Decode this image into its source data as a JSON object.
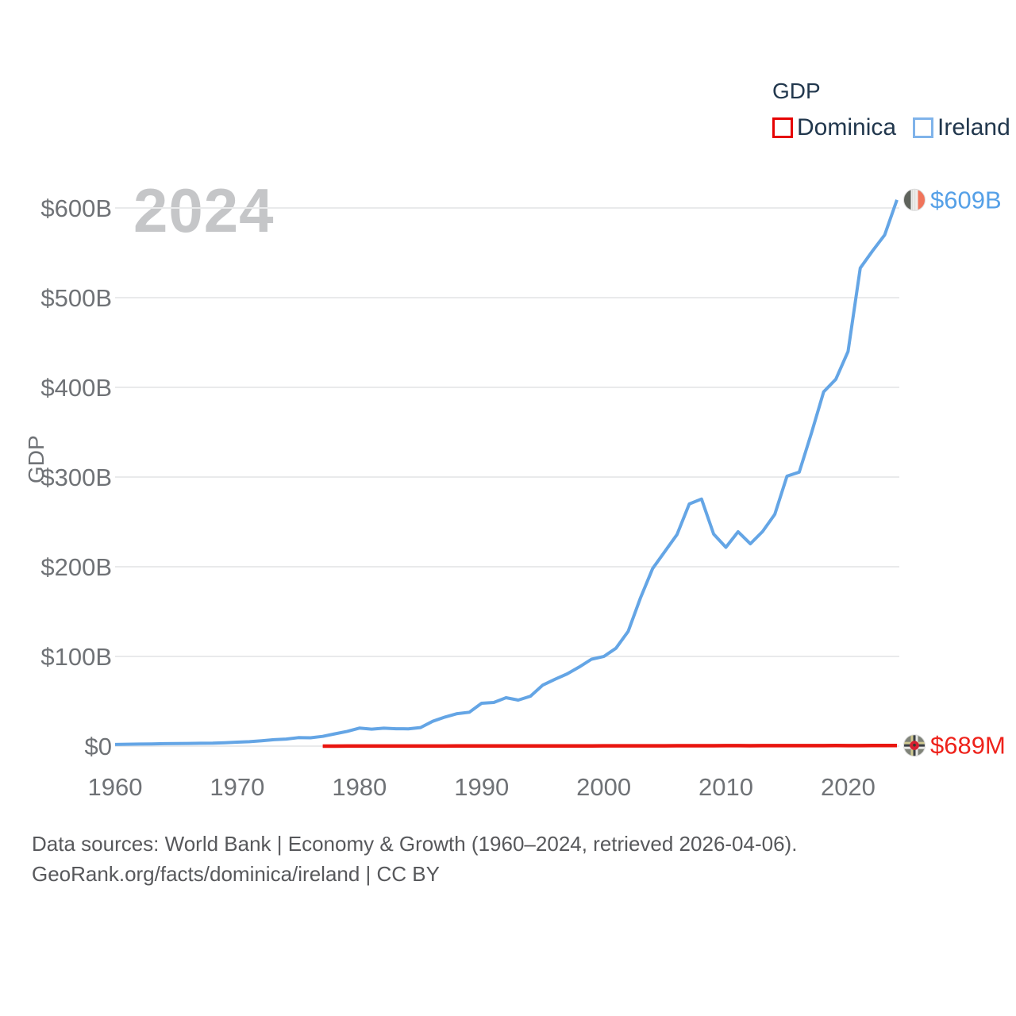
{
  "watermark_year": "2024",
  "legend": {
    "title": "GDP",
    "items": [
      {
        "label": "Dominica",
        "swatch_color": "#e60202"
      },
      {
        "label": "Ireland",
        "swatch_color": "#7fb3ea"
      }
    ]
  },
  "chart_data": {
    "type": "line",
    "title": "GDP",
    "xlabel": "",
    "ylabel": "GDP",
    "x_range": [
      1960,
      2024
    ],
    "ylim": [
      0,
      600
    ],
    "grid": "horizontal",
    "legend_position": "top-right",
    "gridline_color": "#e9eaeb",
    "yticks": [
      {
        "value": 0,
        "label": "$0"
      },
      {
        "value": 100,
        "label": "$100B"
      },
      {
        "value": 200,
        "label": "$200B"
      },
      {
        "value": 300,
        "label": "$300B"
      },
      {
        "value": 400,
        "label": "$400B"
      },
      {
        "value": 500,
        "label": "$500B"
      },
      {
        "value": 600,
        "label": "$600B"
      }
    ],
    "xticks": [
      {
        "value": 1960,
        "label": "1960"
      },
      {
        "value": 1970,
        "label": "1970"
      },
      {
        "value": 1980,
        "label": "1980"
      },
      {
        "value": 1990,
        "label": "1990"
      },
      {
        "value": 2000,
        "label": "2000"
      },
      {
        "value": 2010,
        "label": "2010"
      },
      {
        "value": 2020,
        "label": "2020"
      }
    ],
    "series": [
      {
        "name": "Dominica",
        "unit": "USD millions",
        "color": "#e9150f",
        "label_color": "#ee221b",
        "line_width": 4.5,
        "flag": "dominica",
        "end_label": "$689M",
        "start_year": 1977,
        "values": [
          36,
          43,
          48,
          68,
          79,
          85,
          91,
          98,
          106,
          117,
          131,
          149,
          160,
          166,
          179,
          191,
          199,
          208,
          221,
          232,
          244,
          258,
          270,
          334,
          339,
          341,
          353,
          375,
          389,
          414,
          444,
          475,
          474,
          494,
          501,
          486,
          500,
          524,
          535,
          575,
          555,
          552,
          595,
          504,
          556,
          612,
          654,
          689
        ]
      },
      {
        "name": "Ireland",
        "unit": "USD billions",
        "color": "#64a5e5",
        "label_color": "#55a0e7",
        "line_width": 4,
        "flag": "ireland",
        "end_label": "$609B",
        "start_year": 1960,
        "values": [
          1.9,
          2.1,
          2.3,
          2.4,
          2.7,
          2.9,
          3.0,
          3.2,
          3.3,
          3.7,
          4.4,
          5.0,
          6.0,
          7.2,
          7.9,
          9.5,
          9.3,
          10.9,
          13.7,
          16.5,
          20.1,
          18.9,
          20.0,
          19.4,
          19.3,
          20.7,
          27.7,
          32.4,
          36.2,
          37.8,
          47.8,
          48.7,
          54.0,
          51.3,
          55.7,
          68.0,
          74.5,
          80.5,
          88.2,
          96.9,
          99.9,
          109.1,
          128.0,
          165.0,
          198.0,
          217.0,
          236.0,
          270.0,
          275.5,
          236.4,
          221.7,
          239.0,
          225.6,
          239.3,
          258.4,
          301.0,
          305.5,
          349.0,
          395.0,
          409.0,
          440.0,
          533.0,
          552.0,
          570.0,
          609.0
        ]
      }
    ]
  },
  "footer": {
    "line1": "Data sources: World Bank | Economy & Growth (1960–2024, retrieved 2026-04-06).",
    "line2": "GeoRank.org/facts/dominica/ireland | CC BY"
  }
}
